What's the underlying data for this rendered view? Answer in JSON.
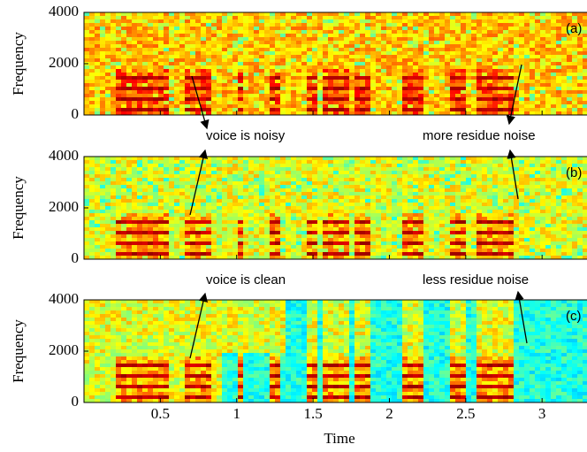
{
  "chart_data": [
    {
      "type": "spectrogram",
      "label": "(a)",
      "ylabel": "Frequency",
      "xlim": [
        0,
        3.3
      ],
      "ylim": [
        0,
        4000
      ],
      "xticks": [
        0.5,
        1,
        1.5,
        2,
        2.5,
        3
      ],
      "yticks": [
        0,
        2000,
        4000
      ],
      "annotations": [
        "voice is noisy",
        "more residue noise"
      ]
    },
    {
      "type": "spectrogram",
      "label": "(b)",
      "ylabel": "Frequency",
      "xlim": [
        0,
        3.3
      ],
      "ylim": [
        0,
        4000
      ],
      "xticks": [
        0.5,
        1,
        1.5,
        2,
        2.5,
        3
      ],
      "yticks": [
        0,
        2000,
        4000
      ],
      "annotations": [
        "voice is clean",
        "less residue noise"
      ]
    },
    {
      "type": "spectrogram",
      "label": "(c)",
      "ylabel": "Frequency",
      "xlabel": "Time",
      "xlim": [
        0,
        3.3
      ],
      "ylim": [
        0,
        4000
      ],
      "xticks": [
        0.5,
        1,
        1.5,
        2,
        2.5,
        3
      ],
      "yticks": [
        0,
        2000,
        4000
      ]
    }
  ]
}
